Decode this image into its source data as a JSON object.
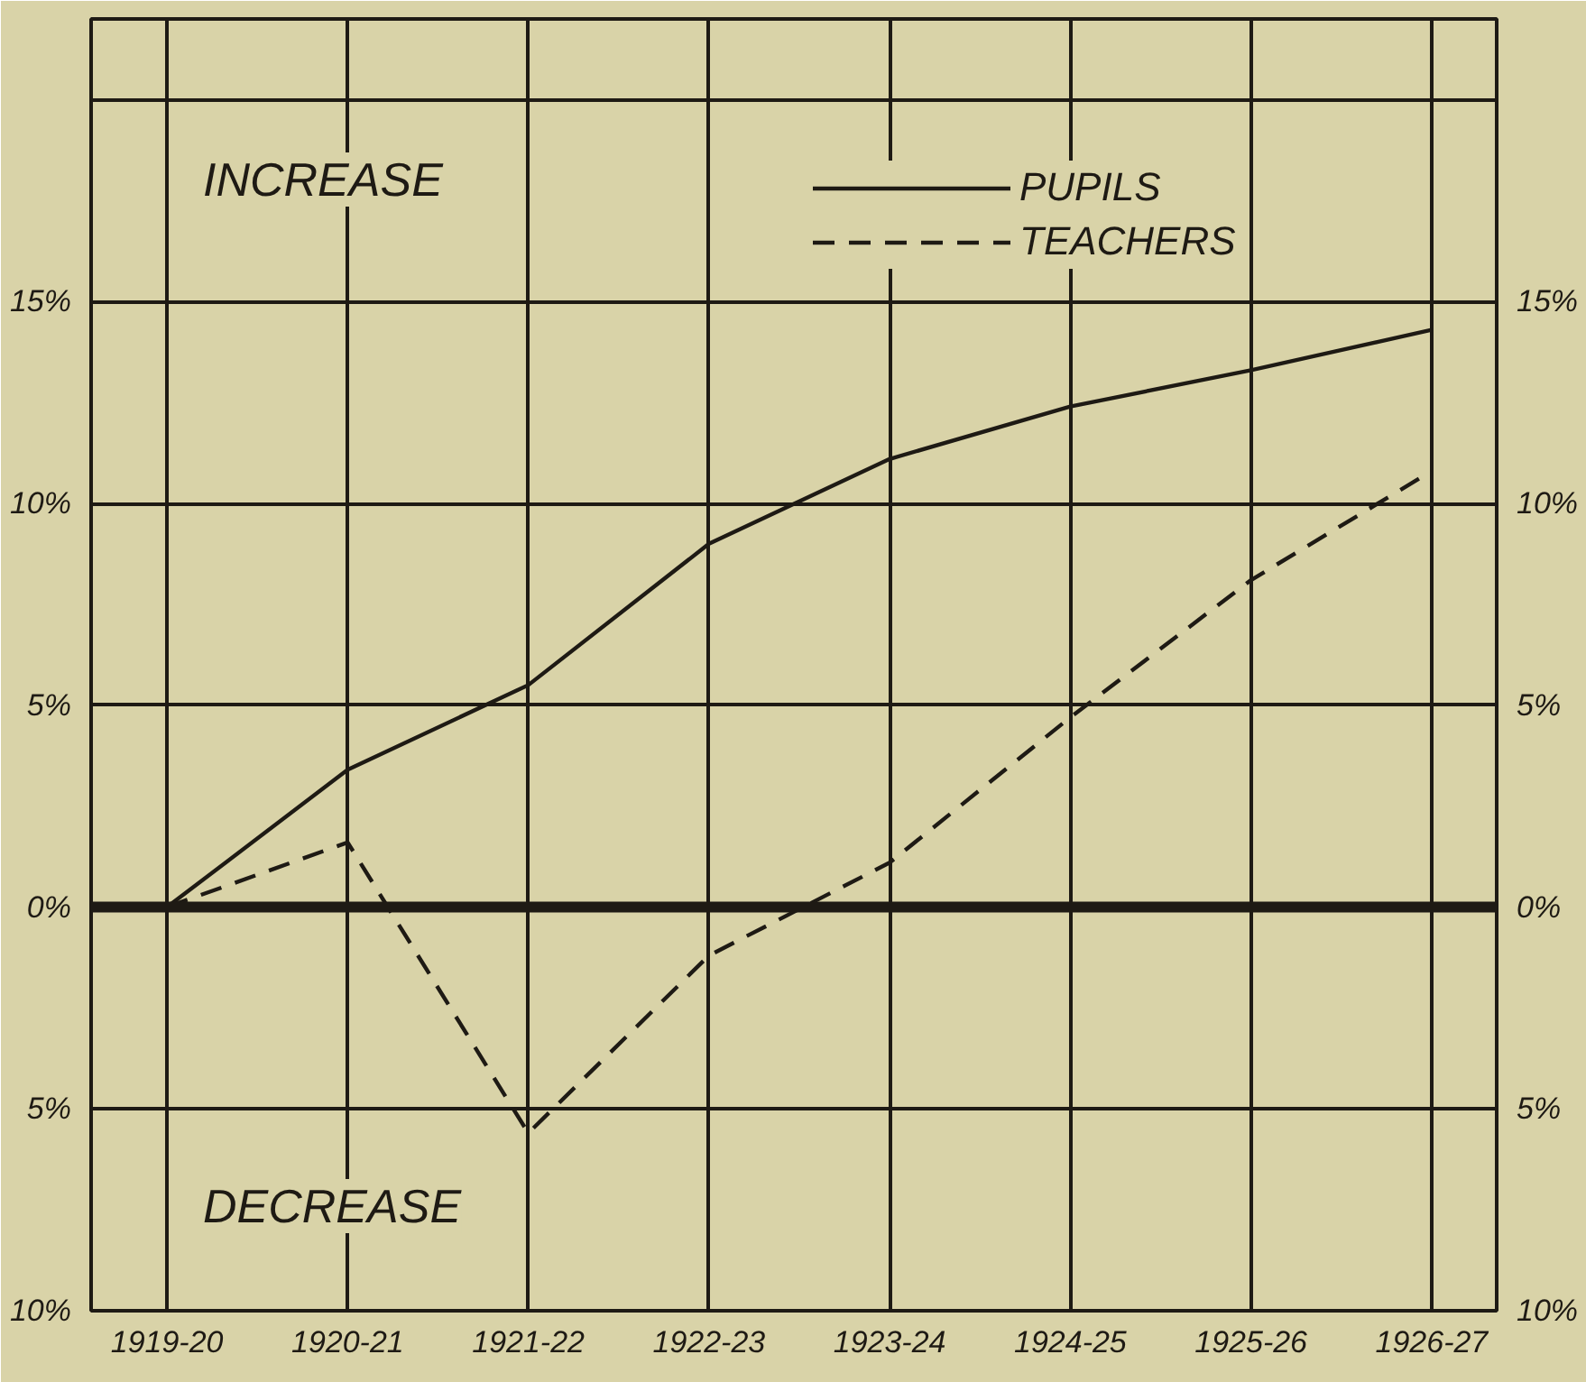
{
  "chart_data": {
    "type": "line",
    "categories": [
      "1919-20",
      "1920-21",
      "1921-22",
      "1922-23",
      "1923-24",
      "1924-25",
      "1925-26",
      "1926-27"
    ],
    "series": [
      {
        "name": "PUPILS",
        "color": "#1e1a14",
        "line_style": "solid",
        "values": [
          0,
          3.4,
          5.5,
          9.0,
          11.1,
          12.4,
          13.3,
          14.3
        ]
      },
      {
        "name": "TEACHERS",
        "color": "#1e1a14",
        "line_style": "dashed",
        "values": [
          0,
          1.6,
          -5.6,
          -1.2,
          1.1,
          4.7,
          8.1,
          10.8
        ]
      }
    ],
    "ylim": [
      -10,
      22
    ],
    "yticks": [
      {
        "value": -10,
        "label": "10%"
      },
      {
        "value": -5,
        "label": "5%"
      },
      {
        "value": 0,
        "label": "0%"
      },
      {
        "value": 5,
        "label": "5%"
      },
      {
        "value": 10,
        "label": "10%"
      },
      {
        "value": 15,
        "label": "15%"
      },
      {
        "value": 20,
        "label": null
      }
    ],
    "y2lim": [
      -10,
      22
    ],
    "y2ticks": [
      {
        "value": -10,
        "label": "10%"
      },
      {
        "value": -5,
        "label": "5%"
      },
      {
        "value": 0,
        "label": "0%"
      },
      {
        "value": 5,
        "label": "5%"
      },
      {
        "value": 10,
        "label": "10%"
      },
      {
        "value": 15,
        "label": "15%"
      },
      {
        "value": 20,
        "label": null
      }
    ],
    "ref_lines": [
      {
        "axis": "y",
        "value": 0,
        "color": "#1e1a14"
      }
    ],
    "annotations": [
      "INCREASE",
      "DECREASE"
    ],
    "grid": true,
    "legend": "top right",
    "marker": "none"
  }
}
